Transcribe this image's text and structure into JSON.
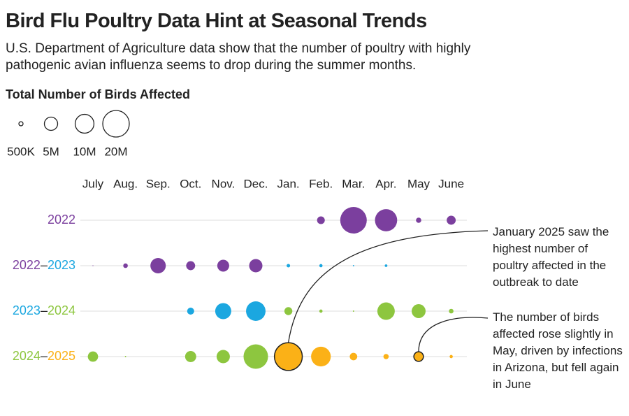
{
  "chart_data": {
    "type": "bubble",
    "title": "Bird Flu Poultry Data Hint at Seasonal Trends",
    "subtitle": "U.S. Department of Agriculture data show that the number of poultry with highly pathogenic avian influenza seems to drop during the summer months.",
    "size_legend": {
      "title": "Total Number of Birds Affected",
      "sizes": [
        {
          "value": 500000,
          "label": "500K"
        },
        {
          "value": 5000000,
          "label": "5M"
        },
        {
          "value": 10000000,
          "label": "10M"
        },
        {
          "value": 20000000,
          "label": "20M"
        }
      ]
    },
    "categories": [
      "July",
      "Aug.",
      "Sep.",
      "Oct.",
      "Nov.",
      "Dec.",
      "Jan.",
      "Feb.",
      "Mar.",
      "Apr.",
      "May",
      "June"
    ],
    "series": [
      {
        "name": [
          "2022"
        ],
        "name_colors": [
          "#7b3f9e"
        ],
        "colors": [
          null,
          null,
          null,
          null,
          null,
          null,
          null,
          "#7b3f9e",
          "#7b3f9e",
          "#7b3f9e",
          "#7b3f9e",
          "#7b3f9e"
        ],
        "values": [
          null,
          null,
          null,
          null,
          null,
          null,
          null,
          1700000,
          20000000,
          14000000,
          800000,
          2300000
        ]
      },
      {
        "name": [
          "2022",
          "–",
          "2023"
        ],
        "name_colors": [
          "#7b3f9e",
          "#222222",
          "#1ba7e0"
        ],
        "colors": [
          "#7b3f9e",
          "#7b3f9e",
          "#7b3f9e",
          "#7b3f9e",
          "#7b3f9e",
          "#7b3f9e",
          "#1ba7e0",
          "#1ba7e0",
          "#1ba7e0",
          "#1ba7e0",
          null,
          null
        ],
        "values": [
          20000,
          600000,
          6700000,
          2300000,
          4000000,
          5000000,
          350000,
          300000,
          50000,
          200000,
          null,
          null
        ]
      },
      {
        "name": [
          "2023",
          "–",
          "2024"
        ],
        "name_colors": [
          "#1ba7e0",
          "#222222",
          "#8dc63f"
        ],
        "colors": [
          null,
          null,
          null,
          "#1ba7e0",
          "#1ba7e0",
          "#1ba7e0",
          "#8dc63f",
          "#8dc63f",
          "#8dc63f",
          "#8dc63f",
          "#8dc63f",
          "#8dc63f"
        ],
        "values": [
          null,
          null,
          null,
          1400000,
          7300000,
          10800000,
          1800000,
          300000,
          50000,
          8600000,
          5500000,
          600000
        ]
      },
      {
        "name": [
          "2024",
          "–",
          "2025"
        ],
        "name_colors": [
          "#8dc63f",
          "#222222",
          "#fbb117"
        ],
        "colors": [
          "#8dc63f",
          "#8dc63f",
          null,
          "#8dc63f",
          "#8dc63f",
          "#8dc63f",
          "#fbb117",
          "#fbb117",
          "#fbb117",
          "#fbb117",
          "#fbb117",
          "#fbb117"
        ],
        "values": [
          3000000,
          50000,
          null,
          3500000,
          5000000,
          17000000,
          22000000,
          11000000,
          1600000,
          800000,
          2600000,
          300000
        ]
      }
    ],
    "annotations": [
      {
        "text": "January 2025 saw the highest number of poultry affected in the outbreak to date",
        "series": 3,
        "index": 6
      },
      {
        "text": "The number of birds affected rose slightly in May, driven by infections in Arizona, but fell again in June",
        "series": 3,
        "index": 10
      }
    ]
  }
}
